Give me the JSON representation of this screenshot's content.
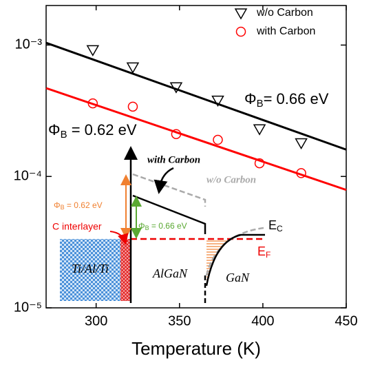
{
  "chart_data": {
    "type": "scatter",
    "x_label": "Temperature (K)",
    "xlim": [
      270,
      450
    ],
    "xticks": [
      300,
      350,
      400,
      450
    ],
    "ylim": [
      1e-05,
      0.002
    ],
    "log_y": true,
    "yticks": [
      {
        "value": 1e-05,
        "label": "10⁻⁵"
      },
      {
        "value": 0.0001,
        "label": "10⁻⁴"
      },
      {
        "value": 0.001,
        "label": "10⁻³"
      }
    ],
    "legend": "upper right",
    "series": [
      {
        "name": "w/o Carbon",
        "color": "#000000",
        "marker": "triangle-down",
        "x": [
          298,
          322,
          348,
          373,
          398,
          423
        ],
        "values": [
          0.00092,
          0.00068,
          0.00048,
          0.00038,
          0.00023,
          0.00018
        ]
      },
      {
        "name": "with Carbon",
        "color": "#ff0000",
        "marker": "circle",
        "x": [
          298,
          322,
          348,
          373,
          398,
          423
        ],
        "values": [
          0.00036,
          0.00034,
          0.00021,
          0.00019,
          0.000126,
          0.000106
        ]
      }
    ],
    "fits": [
      {
        "color": "#000000",
        "x": [
          270,
          450
        ],
        "values": [
          0.00104,
          0.00016
        ]
      },
      {
        "color": "#ff0000",
        "x": [
          270,
          450
        ],
        "values": [
          0.00047,
          7.9e-05
        ]
      }
    ],
    "annotations": [
      {
        "parts": [
          "Φ",
          "B",
          "= 0.66 eV"
        ],
        "color": "#000000"
      },
      {
        "parts": [
          "Φ",
          "B",
          " = 0.62 eV"
        ],
        "color": "#ff0000"
      }
    ],
    "inset": {
      "with_carbon": "with Carbon",
      "wo_carbon": "w/o Carbon",
      "phi_062": [
        "Φ",
        "B",
        " = 0.62 eV"
      ],
      "phi_066": [
        "Φ",
        "B",
        " = 0.66 eV"
      ],
      "c_interlayer": "C interlayer",
      "metal": "Ti/Al/Ti",
      "algan": "AlGaN",
      "gan": "GaN",
      "ec": [
        "E",
        "C"
      ],
      "ef": [
        "E",
        "F"
      ]
    }
  }
}
